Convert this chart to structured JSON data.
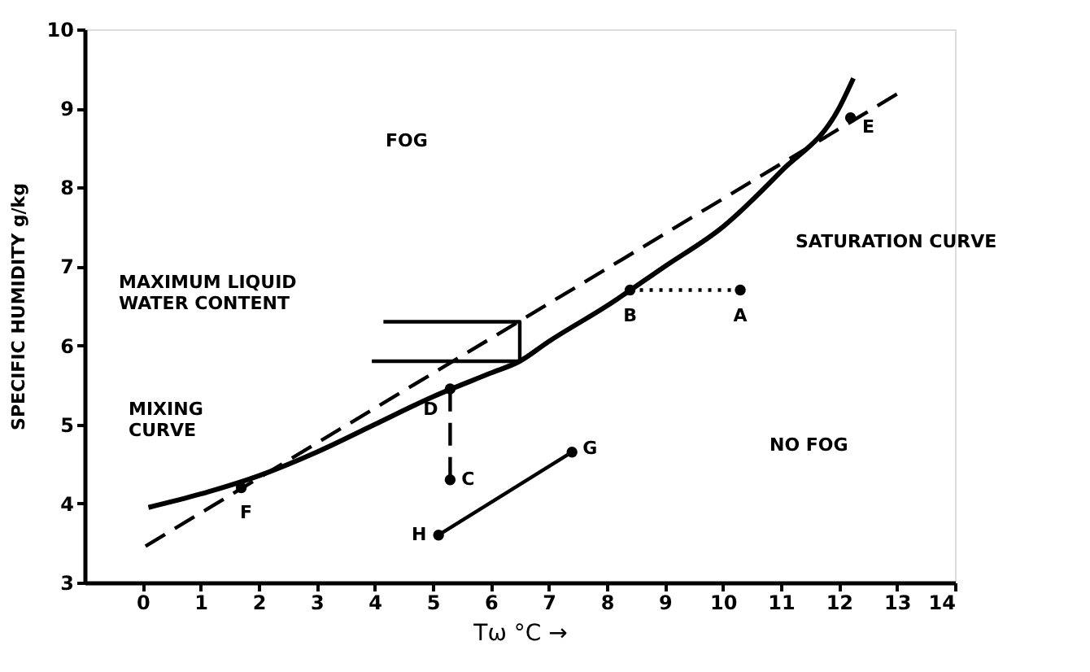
{
  "chart_data": {
    "type": "line",
    "xlabel": "Tω °C →",
    "ylabel": "SPECIFIC HUMIDITY  g/kg",
    "xlim": [
      -1,
      14
    ],
    "ylim": [
      3,
      10
    ],
    "xticks": [
      0,
      1,
      2,
      3,
      4,
      5,
      6,
      7,
      8,
      9,
      10,
      11,
      12,
      13,
      14
    ],
    "yticks": [
      3,
      4,
      5,
      6,
      7,
      8,
      9,
      10
    ],
    "grid": false,
    "series": [
      {
        "line_style": "solid",
        "color": "#000000",
        "x": [
          0.1,
          1,
          2,
          3,
          4,
          5,
          6,
          6.5,
          7,
          8,
          9,
          10,
          11,
          12,
          12.25
        ],
        "values": [
          3.95,
          4.12,
          4.35,
          4.65,
          5.0,
          5.35,
          5.65,
          5.8,
          6.05,
          6.5,
          7.0,
          7.5,
          8.2,
          9.0,
          9.38
        ]
      },
      {
        "line_style": "dashed",
        "color": "#000000",
        "x": [
          0.05,
          13
        ],
        "values": [
          3.46,
          9.18
        ]
      },
      {
        "line_style": "dotted",
        "color": "#000000",
        "x": [
          8.4,
          10.3
        ],
        "values": [
          6.7,
          6.7
        ]
      },
      {
        "line_style": "dashed",
        "color": "#000000",
        "x": [
          5.3,
          5.3
        ],
        "values": [
          4.3,
          5.45
        ]
      },
      {
        "line_style": "solid",
        "color": "#000000",
        "x": [
          5.1,
          7.4
        ],
        "values": [
          3.6,
          4.65
        ]
      },
      {
        "line_style": "solid",
        "color": "#000000",
        "x": [
          4.15,
          6.5,
          6.5,
          3.95
        ],
        "values": [
          6.3,
          6.3,
          5.8,
          5.8
        ]
      },
      {
        "type": "scatter",
        "marker": "circle",
        "color": "#000000",
        "x": [
          10.3,
          8.4,
          5.3,
          5.3,
          12.2,
          1.7,
          7.4,
          5.1
        ],
        "values": [
          6.7,
          6.7,
          4.3,
          5.45,
          8.88,
          4.2,
          4.65,
          3.6
        ]
      }
    ],
    "annotations": [
      "FOG",
      "NO FOG",
      "SATURATION CURVE",
      "MAXIMUM LIQUID\nWATER CONTENT",
      "MIXING\nCURVE",
      {
        "text": "A",
        "x": 10.3,
        "y": 6.7
      },
      {
        "text": "B",
        "x": 8.4,
        "y": 6.7
      },
      {
        "text": "C",
        "x": 5.3,
        "y": 4.3
      },
      {
        "text": "D",
        "x": 5.3,
        "y": 5.45
      },
      {
        "text": "E",
        "x": 12.2,
        "y": 8.88
      },
      {
        "text": "F",
        "x": 1.7,
        "y": 4.2
      },
      {
        "text": "G",
        "x": 7.4,
        "y": 4.65
      },
      {
        "text": "H",
        "x": 5.1,
        "y": 3.6
      }
    ]
  }
}
